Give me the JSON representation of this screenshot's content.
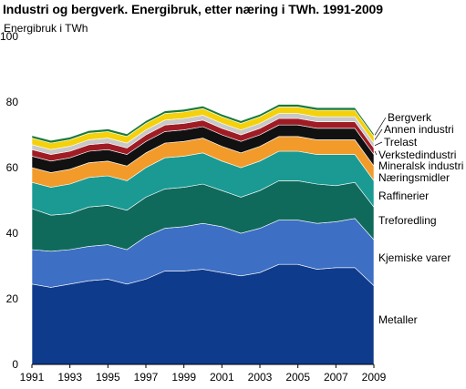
{
  "title": "Industri og bergverk. Energibruk, etter næring i TWh. 1991-2009",
  "chart_data": {
    "type": "area",
    "stacked": true,
    "title": "Industri og bergverk. Energibruk, etter næring i TWh. 1991-2009",
    "ylabel": "Energibruk i TWh",
    "xlabel": "",
    "ylim": [
      0,
      100
    ],
    "yticks": [
      0,
      20,
      40,
      60,
      80,
      100
    ],
    "xlim": [
      1991,
      2009
    ],
    "xticks": [
      1991,
      1993,
      1995,
      1997,
      1999,
      2001,
      2003,
      2005,
      2007,
      2009
    ],
    "grid": false,
    "legend": "right-side labels at series ends",
    "x": [
      1991,
      1992,
      1993,
      1994,
      1995,
      1996,
      1997,
      1998,
      1999,
      2000,
      2001,
      2002,
      2003,
      2004,
      2005,
      2006,
      2007,
      2008,
      2009
    ],
    "series": [
      {
        "name": "Metaller",
        "color": "#0f3b8c",
        "values": [
          24.5,
          23.5,
          24.5,
          25.5,
          26,
          24.5,
          26,
          28.5,
          28.5,
          29,
          28,
          27,
          28,
          30.5,
          30.5,
          29,
          29.5,
          29.5,
          24
        ]
      },
      {
        "name": "Kjemiske varer",
        "color": "#3d6fc4",
        "values": [
          10.5,
          11,
          10.5,
          10.5,
          10.5,
          10.5,
          13,
          13,
          13.5,
          14,
          14,
          13,
          13.5,
          13.5,
          13.5,
          14,
          14,
          15,
          14
        ]
      },
      {
        "name": "Treforedling",
        "color": "#106a5c",
        "values": [
          12.5,
          11,
          11,
          12,
          12,
          12,
          12,
          12,
          12,
          12,
          11,
          11,
          11.5,
          12,
          12,
          12,
          11,
          11,
          10
        ]
      },
      {
        "name": "Raffinerier",
        "color": "#1a9a93",
        "values": [
          8,
          8.5,
          9,
          9,
          9,
          9,
          9,
          9.5,
          9.5,
          9.5,
          9,
          9,
          9,
          9,
          9,
          9,
          9.5,
          8.5,
          8
        ]
      },
      {
        "name": "Næringsmidler",
        "color": "#f29b2a",
        "values": [
          4.5,
          4.5,
          4.5,
          4.5,
          4.5,
          4.5,
          4.5,
          4.5,
          4.5,
          4.5,
          4.5,
          4.5,
          4.5,
          4.5,
          4.5,
          4.5,
          4.5,
          4.5,
          4.5
        ]
      },
      {
        "name": "Mineralsk industri",
        "color": "#111111",
        "values": [
          3.5,
          3.5,
          3.5,
          3.5,
          3.5,
          3.5,
          3.5,
          3.5,
          3.5,
          3.5,
          3.5,
          3.5,
          3.5,
          3.5,
          3.5,
          3.5,
          3.5,
          3.5,
          3.5
        ]
      },
      {
        "name": "Verkstedindustri",
        "color": "#a01c25",
        "values": [
          2,
          2,
          2,
          2,
          2,
          2,
          2,
          2,
          2,
          2,
          2,
          2,
          2,
          2,
          2,
          2,
          2,
          2,
          2
        ]
      },
      {
        "name": "Trelast",
        "color": "#c8c8c8",
        "values": [
          1.5,
          1.5,
          1.5,
          1.5,
          1.5,
          1.5,
          1.5,
          1.5,
          1.5,
          1.5,
          1.5,
          1.5,
          1.5,
          1.5,
          1.5,
          1.5,
          1.5,
          1.5,
          1.5
        ]
      },
      {
        "name": "Annen industri",
        "color": "#f5d10b",
        "values": [
          2,
          2,
          2,
          2,
          2,
          2,
          2,
          2,
          2,
          2,
          2,
          2,
          2,
          2,
          2,
          2,
          2,
          2,
          2
        ]
      },
      {
        "name": "Bergverk",
        "color": "#1b7a38",
        "values": [
          0.8,
          0.8,
          0.8,
          0.8,
          0.8,
          0.8,
          0.8,
          0.8,
          0.8,
          0.8,
          0.8,
          0.8,
          0.8,
          0.8,
          0.8,
          0.8,
          0.8,
          0.8,
          0.8
        ]
      }
    ]
  }
}
